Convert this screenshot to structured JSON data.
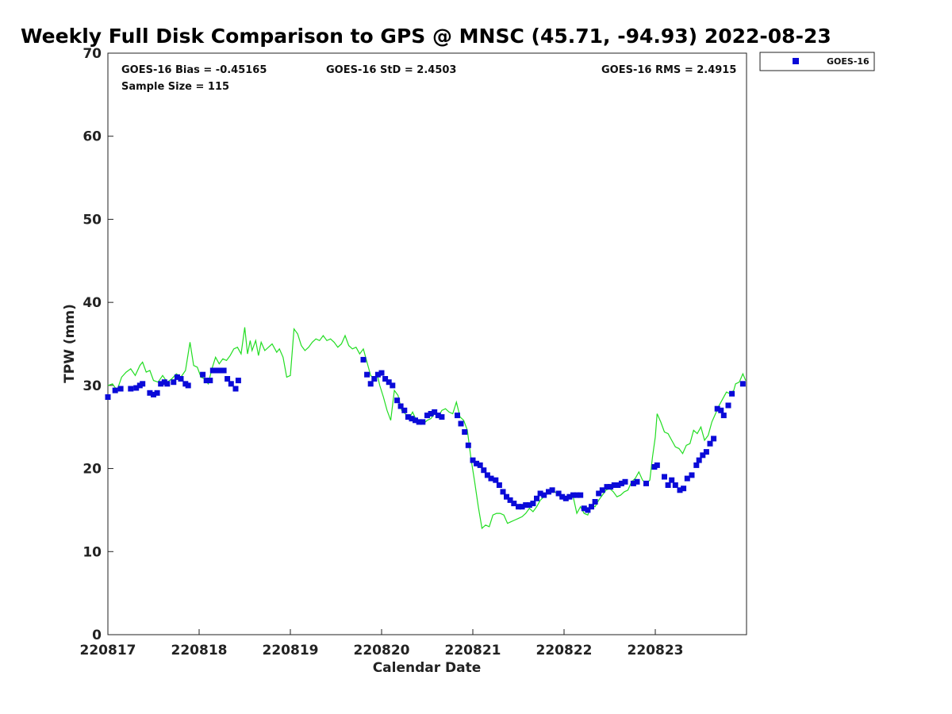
{
  "chart_data": {
    "type": "scatter",
    "title": "Weekly Full Disk Comparison to GPS @ MNSC (45.71, -94.93) 2022-08-23",
    "xlabel": "Calendar Date",
    "ylabel": "TPW (mm)",
    "x_unit": "days",
    "xlim": [
      0,
      7
    ],
    "ylim": [
      0,
      70
    ],
    "x_tick_labels": [
      "220817",
      "220818",
      "220819",
      "220820",
      "220821",
      "220822",
      "220823"
    ],
    "y_ticks": [
      0,
      10,
      20,
      30,
      40,
      50,
      60,
      70
    ],
    "stats": {
      "bias": "GOES-16 Bias = -0.45165",
      "std": "GOES-16 StD = 2.4503",
      "rms": "GOES-16 RMS = 2.4915",
      "sample": "Sample Size = 115"
    },
    "legend": {
      "label": "GOES-16",
      "position": "outside-top-right"
    },
    "colors": {
      "goes": "#0a0ad8",
      "gps": "#22dd22"
    },
    "series": [
      {
        "name": "GOES-16",
        "marker": "square",
        "points": [
          [
            0.0,
            28.6
          ],
          [
            0.08,
            29.4
          ],
          [
            0.14,
            29.6
          ],
          [
            0.25,
            29.6
          ],
          [
            0.31,
            29.7
          ],
          [
            0.35,
            30.0
          ],
          [
            0.38,
            30.2
          ],
          [
            0.46,
            29.1
          ],
          [
            0.5,
            28.9
          ],
          [
            0.54,
            29.1
          ],
          [
            0.58,
            30.2
          ],
          [
            0.62,
            30.4
          ],
          [
            0.65,
            30.2
          ],
          [
            0.72,
            30.4
          ],
          [
            0.76,
            31.0
          ],
          [
            0.8,
            30.8
          ],
          [
            0.85,
            30.2
          ],
          [
            0.88,
            30.0
          ],
          [
            1.04,
            31.3
          ],
          [
            1.08,
            30.6
          ],
          [
            1.12,
            30.6
          ],
          [
            1.15,
            31.8
          ],
          [
            1.19,
            31.8
          ],
          [
            1.23,
            31.8
          ],
          [
            1.27,
            31.8
          ],
          [
            1.31,
            30.8
          ],
          [
            1.35,
            30.2
          ],
          [
            1.4,
            29.6
          ],
          [
            1.43,
            30.6
          ],
          [
            2.8,
            33.1
          ],
          [
            2.84,
            31.3
          ],
          [
            2.88,
            30.2
          ],
          [
            2.92,
            30.8
          ],
          [
            2.96,
            31.3
          ],
          [
            3.0,
            31.5
          ],
          [
            3.04,
            30.8
          ],
          [
            3.08,
            30.4
          ],
          [
            3.12,
            30.0
          ],
          [
            3.17,
            28.2
          ],
          [
            3.21,
            27.5
          ],
          [
            3.25,
            27.0
          ],
          [
            3.29,
            26.2
          ],
          [
            3.33,
            26.0
          ],
          [
            3.37,
            25.8
          ],
          [
            3.41,
            25.6
          ],
          [
            3.45,
            25.6
          ],
          [
            3.5,
            26.4
          ],
          [
            3.54,
            26.6
          ],
          [
            3.58,
            26.8
          ],
          [
            3.62,
            26.4
          ],
          [
            3.66,
            26.2
          ],
          [
            3.83,
            26.4
          ],
          [
            3.87,
            25.4
          ],
          [
            3.91,
            24.4
          ],
          [
            3.95,
            22.8
          ],
          [
            4.0,
            21.0
          ],
          [
            4.04,
            20.6
          ],
          [
            4.08,
            20.4
          ],
          [
            4.12,
            19.8
          ],
          [
            4.16,
            19.2
          ],
          [
            4.2,
            18.8
          ],
          [
            4.25,
            18.6
          ],
          [
            4.29,
            18.0
          ],
          [
            4.33,
            17.2
          ],
          [
            4.37,
            16.6
          ],
          [
            4.41,
            16.2
          ],
          [
            4.45,
            15.8
          ],
          [
            4.5,
            15.4
          ],
          [
            4.54,
            15.4
          ],
          [
            4.58,
            15.6
          ],
          [
            4.62,
            15.6
          ],
          [
            4.66,
            15.8
          ],
          [
            4.7,
            16.4
          ],
          [
            4.74,
            17.0
          ],
          [
            4.78,
            16.8
          ],
          [
            4.83,
            17.2
          ],
          [
            4.87,
            17.4
          ],
          [
            4.94,
            17.0
          ],
          [
            4.98,
            16.6
          ],
          [
            5.02,
            16.4
          ],
          [
            5.06,
            16.6
          ],
          [
            5.1,
            16.8
          ],
          [
            5.14,
            16.8
          ],
          [
            5.18,
            16.8
          ],
          [
            5.22,
            15.2
          ],
          [
            5.26,
            15.0
          ],
          [
            5.3,
            15.4
          ],
          [
            5.34,
            16.0
          ],
          [
            5.38,
            17.0
          ],
          [
            5.42,
            17.4
          ],
          [
            5.47,
            17.8
          ],
          [
            5.51,
            17.8
          ],
          [
            5.55,
            18.0
          ],
          [
            5.59,
            18.0
          ],
          [
            5.63,
            18.2
          ],
          [
            5.67,
            18.4
          ],
          [
            5.76,
            18.2
          ],
          [
            5.8,
            18.4
          ],
          [
            5.9,
            18.2
          ],
          [
            5.99,
            20.2
          ],
          [
            6.02,
            20.4
          ],
          [
            6.1,
            19.0
          ],
          [
            6.14,
            18.0
          ],
          [
            6.18,
            18.6
          ],
          [
            6.22,
            18.0
          ],
          [
            6.27,
            17.4
          ],
          [
            6.31,
            17.6
          ],
          [
            6.35,
            18.8
          ],
          [
            6.4,
            19.2
          ],
          [
            6.45,
            20.4
          ],
          [
            6.48,
            21.0
          ],
          [
            6.52,
            21.6
          ],
          [
            6.56,
            22.0
          ],
          [
            6.6,
            23.0
          ],
          [
            6.64,
            23.6
          ],
          [
            6.68,
            27.2
          ],
          [
            6.72,
            27.0
          ],
          [
            6.75,
            26.4
          ],
          [
            6.8,
            27.6
          ],
          [
            6.84,
            29.0
          ],
          [
            6.96,
            30.2
          ]
        ]
      },
      {
        "name": "GPS",
        "marker": "line",
        "points": [
          [
            0.0,
            30.0
          ],
          [
            0.05,
            30.2
          ],
          [
            0.1,
            29.4
          ],
          [
            0.15,
            31.0
          ],
          [
            0.2,
            31.6
          ],
          [
            0.25,
            32.0
          ],
          [
            0.3,
            31.2
          ],
          [
            0.35,
            32.4
          ],
          [
            0.38,
            32.8
          ],
          [
            0.42,
            31.6
          ],
          [
            0.46,
            31.8
          ],
          [
            0.5,
            30.6
          ],
          [
            0.55,
            30.4
          ],
          [
            0.6,
            31.2
          ],
          [
            0.65,
            30.4
          ],
          [
            0.7,
            30.8
          ],
          [
            0.75,
            31.4
          ],
          [
            0.8,
            31.0
          ],
          [
            0.85,
            31.8
          ],
          [
            0.9,
            35.2
          ],
          [
            0.94,
            32.4
          ],
          [
            0.98,
            32.2
          ],
          [
            1.02,
            31.0
          ],
          [
            1.06,
            30.8
          ],
          [
            1.1,
            30.2
          ],
          [
            1.14,
            32.0
          ],
          [
            1.18,
            33.4
          ],
          [
            1.22,
            32.6
          ],
          [
            1.26,
            33.2
          ],
          [
            1.3,
            33.0
          ],
          [
            1.34,
            33.6
          ],
          [
            1.38,
            34.4
          ],
          [
            1.42,
            34.6
          ],
          [
            1.46,
            33.8
          ],
          [
            1.5,
            37.0
          ],
          [
            1.53,
            33.8
          ],
          [
            1.56,
            35.4
          ],
          [
            1.58,
            34.2
          ],
          [
            1.62,
            35.4
          ],
          [
            1.65,
            33.6
          ],
          [
            1.68,
            35.2
          ],
          [
            1.72,
            34.2
          ],
          [
            1.76,
            34.6
          ],
          [
            1.8,
            35.0
          ],
          [
            1.85,
            34.0
          ],
          [
            1.88,
            34.4
          ],
          [
            1.92,
            33.4
          ],
          [
            1.96,
            31.0
          ],
          [
            2.0,
            31.2
          ],
          [
            2.04,
            36.8
          ],
          [
            2.08,
            36.2
          ],
          [
            2.12,
            34.8
          ],
          [
            2.16,
            34.2
          ],
          [
            2.2,
            34.6
          ],
          [
            2.24,
            35.2
          ],
          [
            2.28,
            35.6
          ],
          [
            2.32,
            35.4
          ],
          [
            2.36,
            36.0
          ],
          [
            2.4,
            35.4
          ],
          [
            2.44,
            35.6
          ],
          [
            2.48,
            35.2
          ],
          [
            2.52,
            34.6
          ],
          [
            2.56,
            35.0
          ],
          [
            2.6,
            36.0
          ],
          [
            2.64,
            34.8
          ],
          [
            2.68,
            34.4
          ],
          [
            2.72,
            34.6
          ],
          [
            2.76,
            33.8
          ],
          [
            2.8,
            34.4
          ],
          [
            2.84,
            32.8
          ],
          [
            2.88,
            31.2
          ],
          [
            2.92,
            30.8
          ],
          [
            2.95,
            31.4
          ],
          [
            2.98,
            30.0
          ],
          [
            3.02,
            28.6
          ],
          [
            3.06,
            27.0
          ],
          [
            3.1,
            25.8
          ],
          [
            3.14,
            29.4
          ],
          [
            3.18,
            28.8
          ],
          [
            3.22,
            27.0
          ],
          [
            3.26,
            26.6
          ],
          [
            3.3,
            26.0
          ],
          [
            3.34,
            26.8
          ],
          [
            3.38,
            25.8
          ],
          [
            3.42,
            25.6
          ],
          [
            3.46,
            25.4
          ],
          [
            3.5,
            25.8
          ],
          [
            3.54,
            26.0
          ],
          [
            3.58,
            26.6
          ],
          [
            3.62,
            26.2
          ],
          [
            3.66,
            27.0
          ],
          [
            3.7,
            27.2
          ],
          [
            3.74,
            26.8
          ],
          [
            3.78,
            26.6
          ],
          [
            3.82,
            28.0
          ],
          [
            3.86,
            26.2
          ],
          [
            3.9,
            25.8
          ],
          [
            3.94,
            24.6
          ],
          [
            3.98,
            21.2
          ],
          [
            4.02,
            18.4
          ],
          [
            4.06,
            15.4
          ],
          [
            4.1,
            12.8
          ],
          [
            4.14,
            13.2
          ],
          [
            4.18,
            13.0
          ],
          [
            4.22,
            14.4
          ],
          [
            4.26,
            14.6
          ],
          [
            4.3,
            14.6
          ],
          [
            4.34,
            14.4
          ],
          [
            4.38,
            13.4
          ],
          [
            4.42,
            13.6
          ],
          [
            4.46,
            13.8
          ],
          [
            4.5,
            14.0
          ],
          [
            4.54,
            14.2
          ],
          [
            4.58,
            14.6
          ],
          [
            4.62,
            15.2
          ],
          [
            4.66,
            14.8
          ],
          [
            4.7,
            15.4
          ],
          [
            4.74,
            16.2
          ],
          [
            4.78,
            16.6
          ],
          [
            4.82,
            17.0
          ],
          [
            4.86,
            17.4
          ],
          [
            4.9,
            17.2
          ],
          [
            4.94,
            16.8
          ],
          [
            4.98,
            16.4
          ],
          [
            5.02,
            16.6
          ],
          [
            5.06,
            16.8
          ],
          [
            5.1,
            16.6
          ],
          [
            5.14,
            14.6
          ],
          [
            5.18,
            15.4
          ],
          [
            5.22,
            14.6
          ],
          [
            5.26,
            14.4
          ],
          [
            5.3,
            15.6
          ],
          [
            5.34,
            15.4
          ],
          [
            5.38,
            16.2
          ],
          [
            5.42,
            16.8
          ],
          [
            5.46,
            17.4
          ],
          [
            5.5,
            17.6
          ],
          [
            5.54,
            17.2
          ],
          [
            5.58,
            16.6
          ],
          [
            5.62,
            16.8
          ],
          [
            5.66,
            17.2
          ],
          [
            5.7,
            17.4
          ],
          [
            5.74,
            18.4
          ],
          [
            5.78,
            18.8
          ],
          [
            5.82,
            19.6
          ],
          [
            5.86,
            18.6
          ],
          [
            5.9,
            18.2
          ],
          [
            5.94,
            18.6
          ],
          [
            5.97,
            21.4
          ],
          [
            6.0,
            23.8
          ],
          [
            6.02,
            26.6
          ],
          [
            6.06,
            25.6
          ],
          [
            6.1,
            24.4
          ],
          [
            6.14,
            24.2
          ],
          [
            6.18,
            23.4
          ],
          [
            6.22,
            22.6
          ],
          [
            6.26,
            22.4
          ],
          [
            6.3,
            21.8
          ],
          [
            6.34,
            22.8
          ],
          [
            6.38,
            23.0
          ],
          [
            6.42,
            24.6
          ],
          [
            6.46,
            24.2
          ],
          [
            6.5,
            25.0
          ],
          [
            6.54,
            23.4
          ],
          [
            6.58,
            24.0
          ],
          [
            6.62,
            25.6
          ],
          [
            6.66,
            26.6
          ],
          [
            6.7,
            27.6
          ],
          [
            6.74,
            28.4
          ],
          [
            6.78,
            29.2
          ],
          [
            6.82,
            29.0
          ],
          [
            6.86,
            29.4
          ],
          [
            6.88,
            30.2
          ],
          [
            6.92,
            30.4
          ],
          [
            6.96,
            31.4
          ],
          [
            6.99,
            30.6
          ]
        ]
      }
    ]
  }
}
